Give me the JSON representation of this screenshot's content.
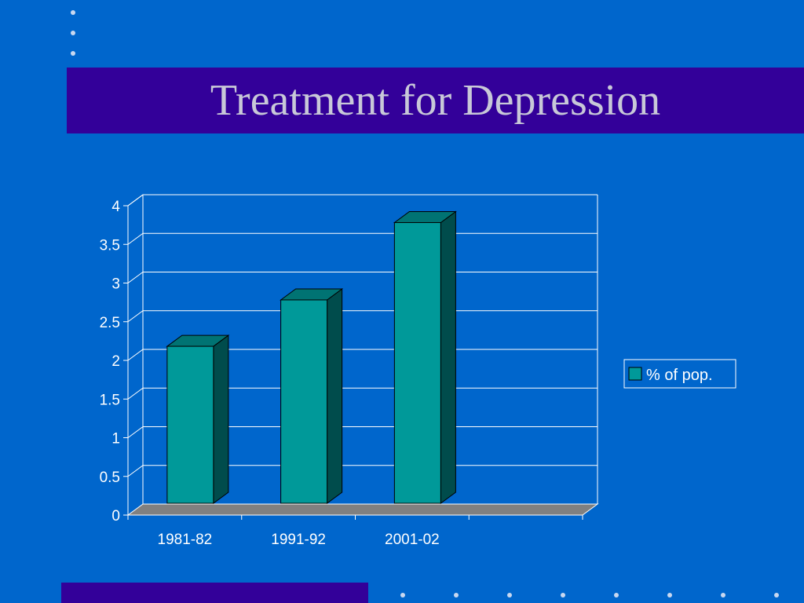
{
  "slide": {
    "title": "Treatment for Depression"
  },
  "colors": {
    "background": "#0066cc",
    "title_bar": "#330099",
    "bar_front": "#009999",
    "bar_side": "#004c4c",
    "bar_top": "#007373",
    "floor": "#808080"
  },
  "chart_data": {
    "type": "bar",
    "categories": [
      "1981-82",
      "1991-92",
      "2001-02"
    ],
    "series": [
      {
        "name": "% of pop.",
        "values": [
          2.05,
          2.65,
          3.65
        ]
      }
    ],
    "ylim": [
      0,
      4
    ],
    "yticks": [
      "0",
      "0.5",
      "1",
      "1.5",
      "2",
      "2.5",
      "3",
      "3.5",
      "4"
    ],
    "grid": true,
    "legend": "right",
    "style": "3d-column"
  }
}
